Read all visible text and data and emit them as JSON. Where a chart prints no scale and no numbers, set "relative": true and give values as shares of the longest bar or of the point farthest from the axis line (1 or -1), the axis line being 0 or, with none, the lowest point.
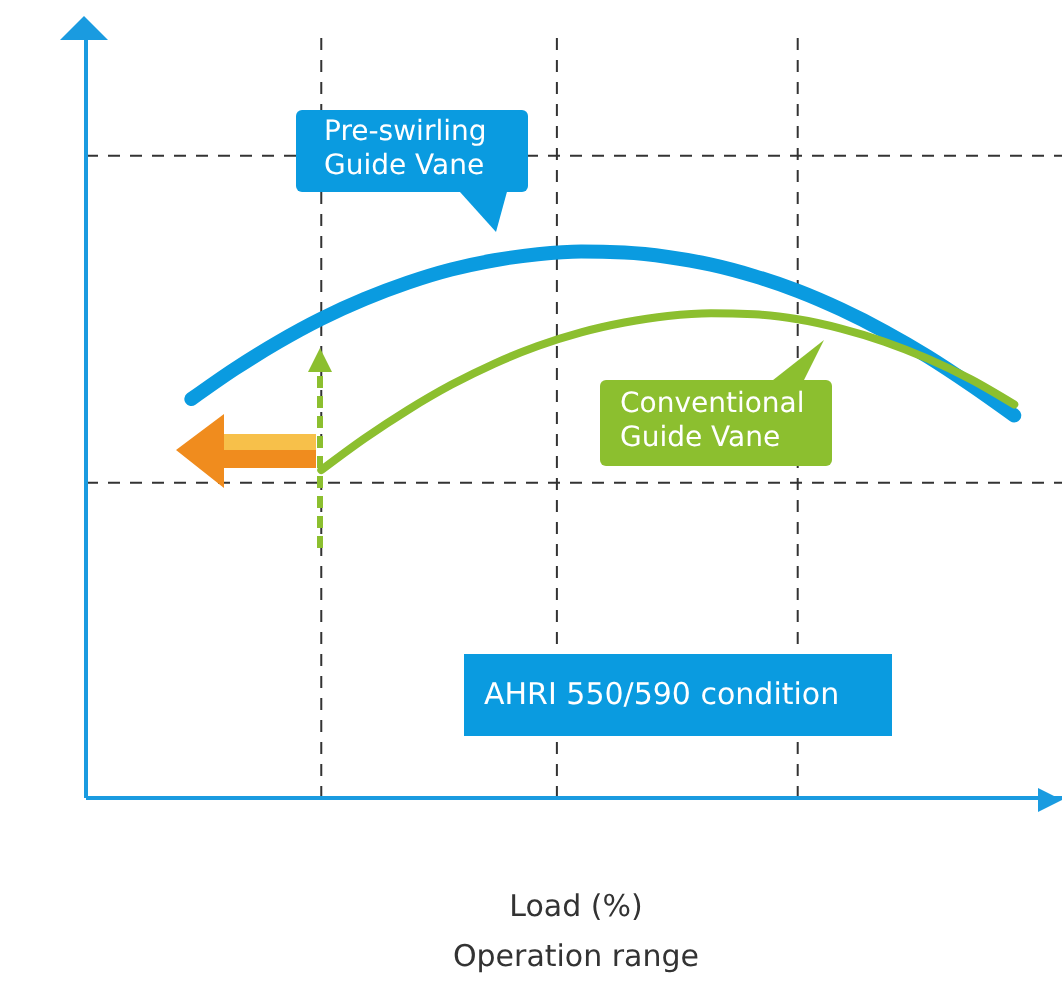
{
  "chart_data": {
    "type": "line",
    "relative": true,
    "marker": "none",
    "xlabel": "Load (%)",
    "annotations": [
      "AHRI 550/590 condition",
      "Operation range"
    ],
    "categories": [
      null,
      null,
      null,
      null,
      null,
      null,
      null,
      null,
      null,
      null,
      null,
      null,
      null,
      null,
      null,
      null,
      null,
      null,
      null,
      null
    ],
    "series": [
      {
        "name": "Pre-swirling Guide Vane",
        "color": "#0a9be0",
        "values": [
          0.73,
          0.785,
          0.834,
          0.877,
          0.913,
          0.943,
          0.967,
          0.984,
          0.995,
          1.0,
          0.998,
          0.99,
          0.976,
          0.955,
          0.928,
          0.894,
          0.854,
          0.808,
          0.756,
          0.7
        ]
      },
      {
        "name": "Conventional Guide Vane",
        "color": "#8cbf2f",
        "values": [
          null,
          null,
          null,
          0.6,
          0.658,
          0.71,
          0.756,
          0.795,
          0.827,
          0.852,
          0.87,
          0.882,
          0.887,
          0.885,
          0.876,
          0.859,
          0.835,
          0.804,
          0.766,
          0.72
        ]
      }
    ],
    "ref_lines": [
      {
        "axis": "y",
        "value": 1.175,
        "color": "#333333",
        "line_style": "dashed"
      },
      {
        "axis": "y",
        "value": 0.577,
        "color": "#333333",
        "line_style": "dashed"
      }
    ]
  }
}
